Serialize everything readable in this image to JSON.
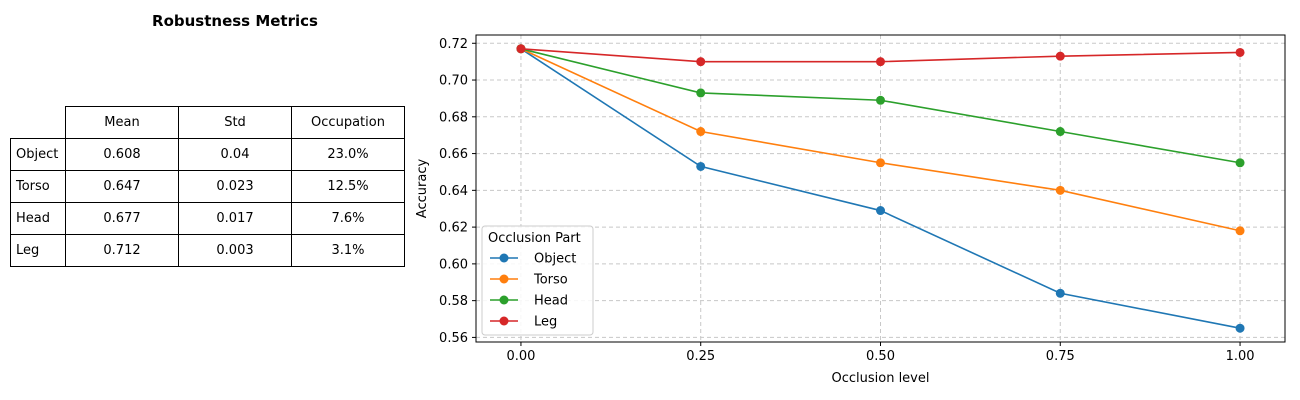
{
  "table": {
    "title": "Robustness Metrics",
    "columns": [
      "Mean",
      "Std",
      "Occupation"
    ],
    "rows": [
      {
        "label": "Object",
        "mean": "0.608",
        "std": "0.04",
        "occupation": "23.0%"
      },
      {
        "label": "Torso",
        "mean": "0.647",
        "std": "0.023",
        "occupation": "12.5%"
      },
      {
        "label": "Head",
        "mean": "0.677",
        "std": "0.017",
        "occupation": "7.6%"
      },
      {
        "label": "Leg",
        "mean": "0.712",
        "std": "0.003",
        "occupation": "3.1%"
      }
    ]
  },
  "chart_data": {
    "type": "line",
    "title": "",
    "xlabel": "Occlusion level",
    "ylabel": "Accuracy",
    "x": [
      0.0,
      0.25,
      0.5,
      0.75,
      1.0
    ],
    "x_tick_labels": [
      "0.00",
      "0.25",
      "0.50",
      "0.75",
      "1.00"
    ],
    "y_ticks": [
      0.56,
      0.58,
      0.6,
      0.62,
      0.64,
      0.66,
      0.68,
      0.7,
      0.72
    ],
    "y_tick_labels": [
      "0.56",
      "0.58",
      "0.60",
      "0.62",
      "0.64",
      "0.66",
      "0.68",
      "0.70",
      "0.72"
    ],
    "xlim": [
      -0.0625,
      1.0625
    ],
    "ylim": [
      0.5575,
      0.7245
    ],
    "grid": true,
    "legend": {
      "title": "Occlusion Part",
      "placement": "lower-left"
    },
    "series": [
      {
        "name": "Object",
        "color": "#1f77b4",
        "values": [
          0.717,
          0.653,
          0.629,
          0.584,
          0.565
        ]
      },
      {
        "name": "Torso",
        "color": "#ff7f0e",
        "values": [
          0.717,
          0.672,
          0.655,
          0.64,
          0.618
        ]
      },
      {
        "name": "Head",
        "color": "#2ca02c",
        "values": [
          0.717,
          0.693,
          0.689,
          0.672,
          0.655
        ]
      },
      {
        "name": "Leg",
        "color": "#d62728",
        "values": [
          0.717,
          0.71,
          0.71,
          0.713,
          0.715
        ]
      }
    ]
  }
}
